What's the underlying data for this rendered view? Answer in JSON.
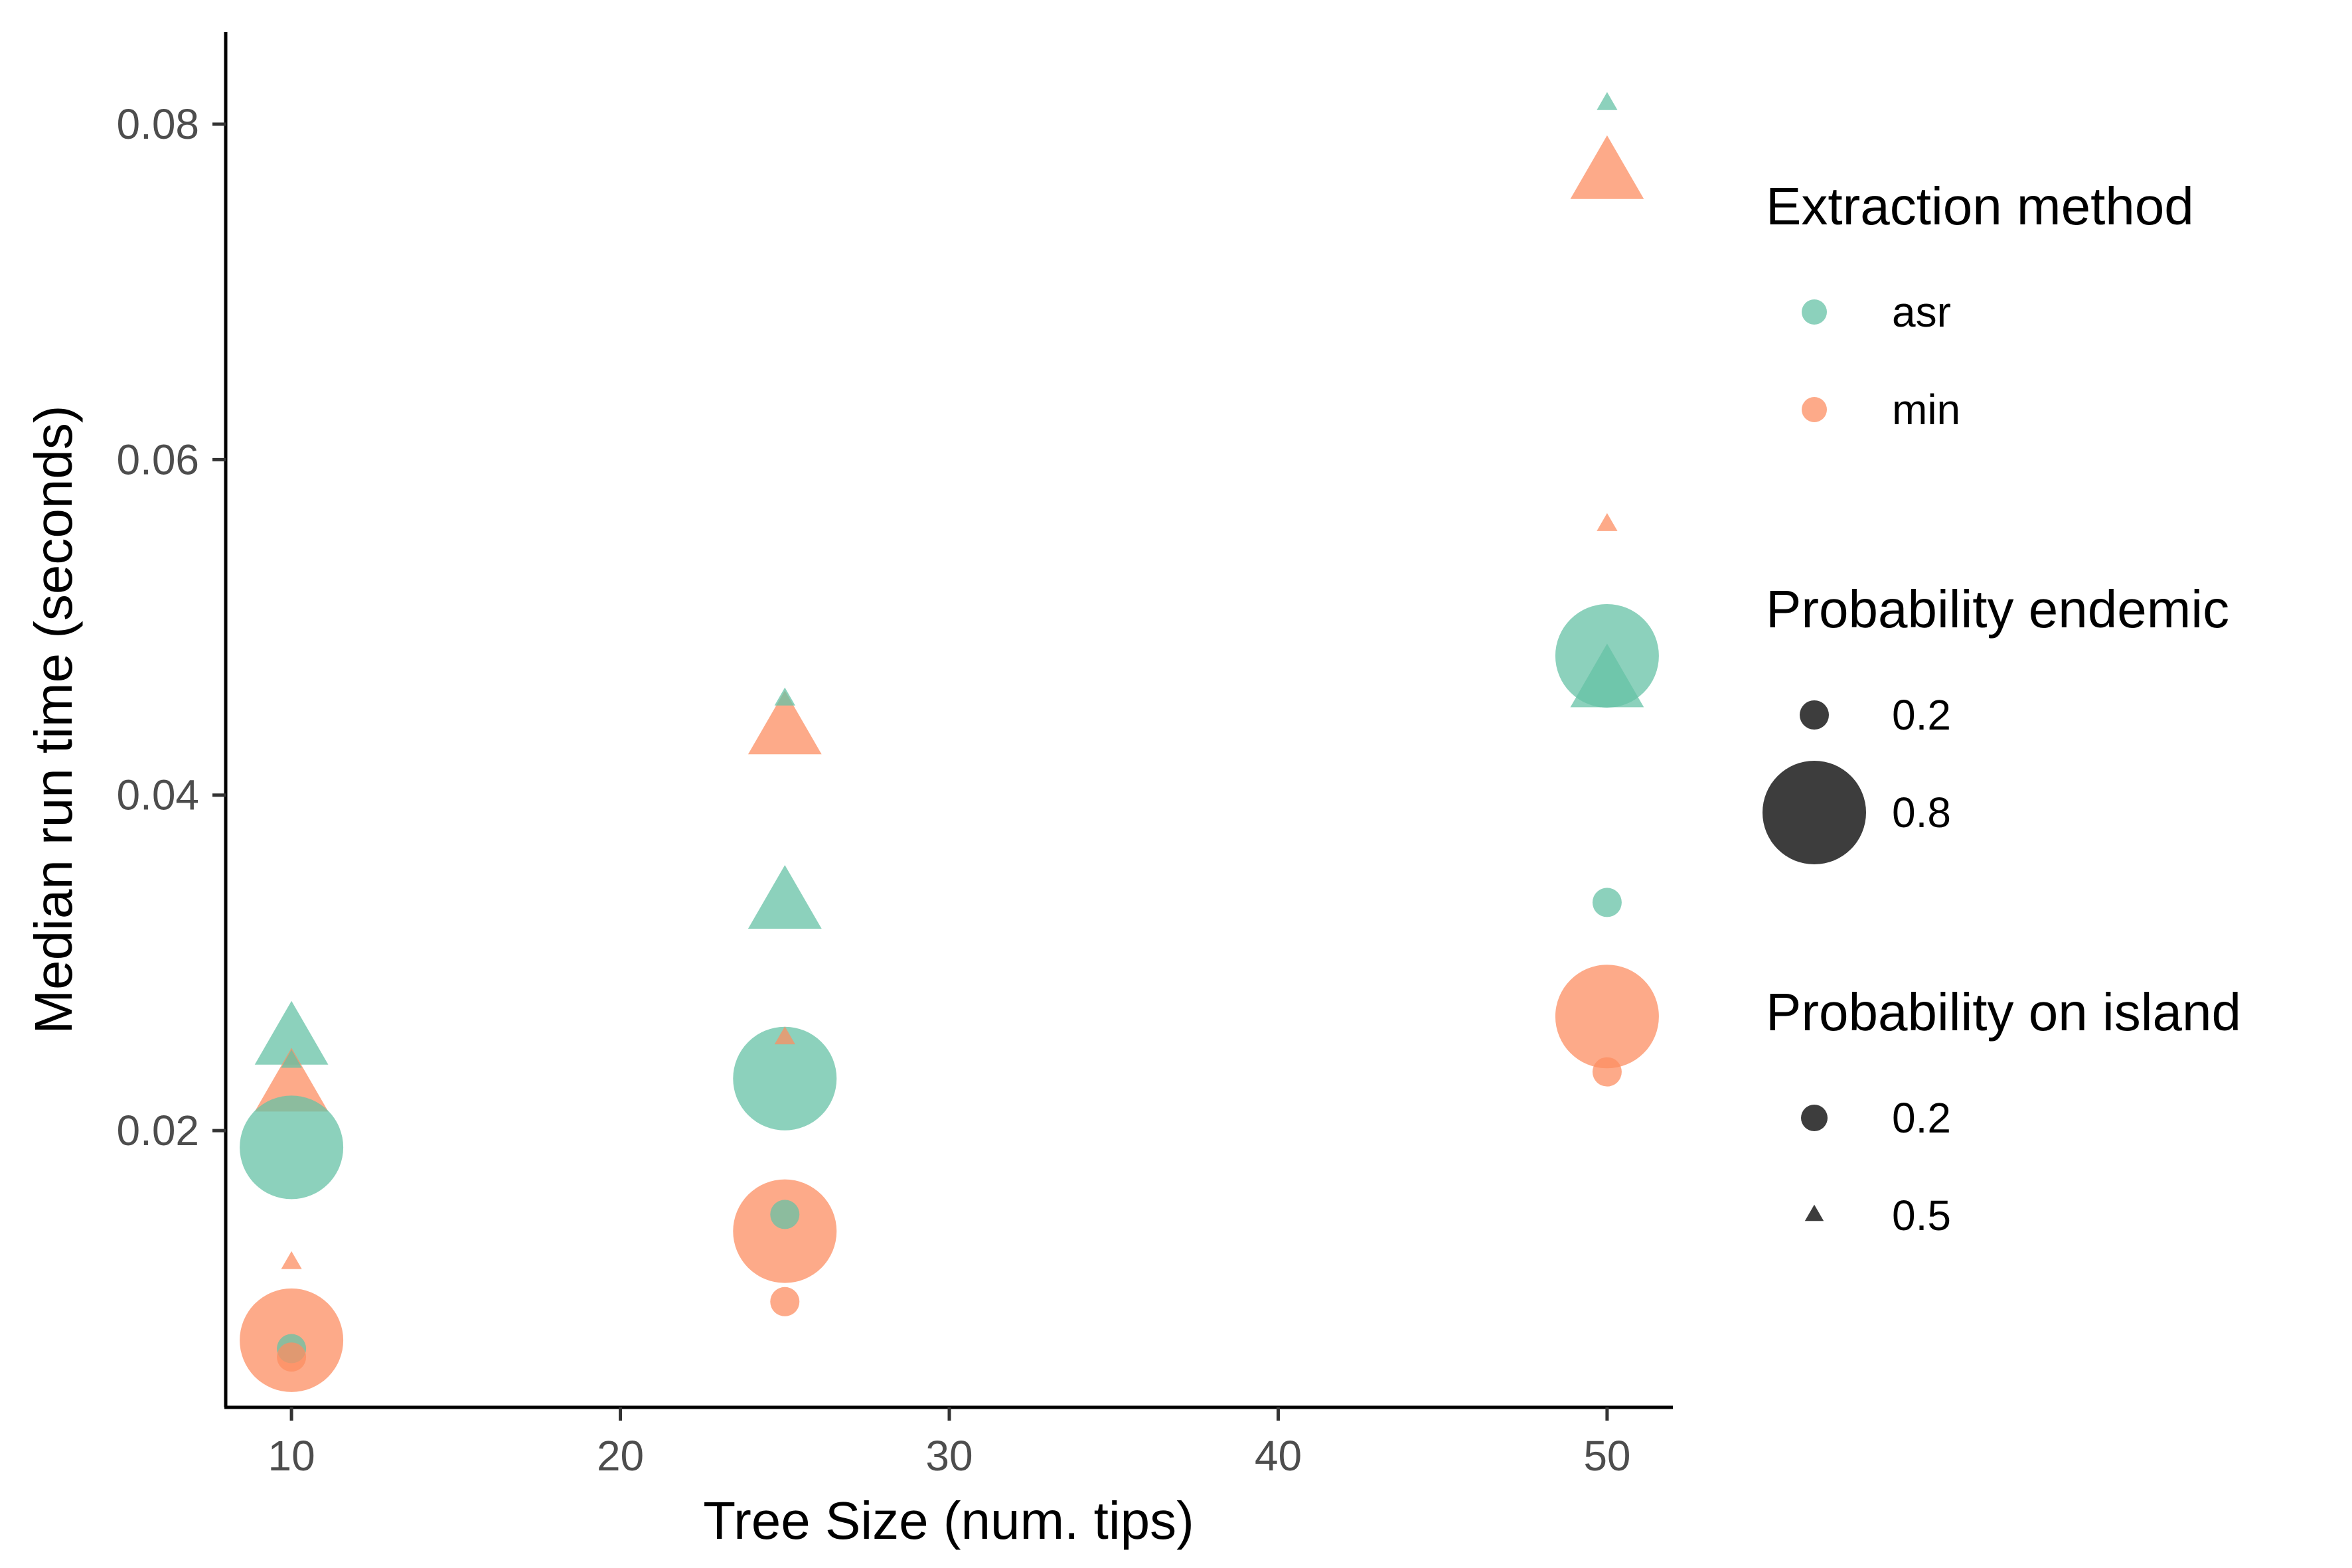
{
  "chart_data": {
    "type": "scatter",
    "title": "",
    "xlabel": "Tree Size (num. tips)",
    "ylabel": "Median run time (seconds)",
    "xlim": [
      8,
      52
    ],
    "ylim": [
      0.0035,
      0.0855
    ],
    "xticks": [
      10,
      20,
      30,
      40,
      50
    ],
    "xtick_labels": [
      "10",
      "20",
      "30",
      "40",
      "50"
    ],
    "yticks": [
      0.02,
      0.04,
      0.06,
      0.08
    ],
    "ytick_labels": [
      "0.02",
      "0.04",
      "0.06",
      "0.08"
    ],
    "grid": false,
    "legend_position": "right",
    "colors": {
      "asr": "#66c2a5",
      "min": "#fc8d62",
      "legend_dark": "#333333"
    },
    "point_opacity": 0.75,
    "legends": [
      {
        "title": "Extraction method",
        "items": [
          {
            "label": "asr",
            "method": "asr"
          },
          {
            "label": "min",
            "method": "min"
          }
        ]
      },
      {
        "title": "Probability endemic",
        "items": [
          {
            "label": "0.2",
            "endemic": 0.2
          },
          {
            "label": "0.8",
            "endemic": 0.8
          }
        ]
      },
      {
        "title": "Probability on island",
        "items": [
          {
            "label": "0.2",
            "island": 0.2
          },
          {
            "label": "0.5",
            "island": 0.5
          }
        ]
      }
    ],
    "points": [
      {
        "x": 10,
        "y": 0.0252,
        "method": "asr",
        "endemic": 0.8,
        "island": 0.5
      },
      {
        "x": 10,
        "y": 0.0224,
        "method": "min",
        "endemic": 0.8,
        "island": 0.5
      },
      {
        "x": 10,
        "y": 0.019,
        "method": "asr",
        "endemic": 0.8,
        "island": 0.2
      },
      {
        "x": 10,
        "y": 0.0241,
        "method": "asr",
        "endemic": 0.2,
        "island": 0.5
      },
      {
        "x": 10,
        "y": 0.0121,
        "method": "min",
        "endemic": 0.2,
        "island": 0.5
      },
      {
        "x": 10,
        "y": 0.0075,
        "method": "min",
        "endemic": 0.8,
        "island": 0.2
      },
      {
        "x": 10,
        "y": 0.007,
        "method": "asr",
        "endemic": 0.2,
        "island": 0.2
      },
      {
        "x": 10,
        "y": 0.0065,
        "method": "min",
        "endemic": 0.2,
        "island": 0.2
      },
      {
        "x": 25,
        "y": 0.0437,
        "method": "min",
        "endemic": 0.8,
        "island": 0.5
      },
      {
        "x": 25,
        "y": 0.0457,
        "method": "asr",
        "endemic": 0.2,
        "island": 0.5
      },
      {
        "x": 25,
        "y": 0.0333,
        "method": "asr",
        "endemic": 0.8,
        "island": 0.5
      },
      {
        "x": 25,
        "y": 0.0255,
        "method": "min",
        "endemic": 0.2,
        "island": 0.5
      },
      {
        "x": 25,
        "y": 0.0231,
        "method": "asr",
        "endemic": 0.8,
        "island": 0.2
      },
      {
        "x": 25,
        "y": 0.014,
        "method": "min",
        "endemic": 0.8,
        "island": 0.2
      },
      {
        "x": 25,
        "y": 0.015,
        "method": "asr",
        "endemic": 0.2,
        "island": 0.2
      },
      {
        "x": 25,
        "y": 0.0098,
        "method": "min",
        "endemic": 0.2,
        "island": 0.2
      },
      {
        "x": 50,
        "y": 0.0812,
        "method": "asr",
        "endemic": 0.2,
        "island": 0.5
      },
      {
        "x": 50,
        "y": 0.0768,
        "method": "min",
        "endemic": 0.8,
        "island": 0.5
      },
      {
        "x": 50,
        "y": 0.0561,
        "method": "min",
        "endemic": 0.2,
        "island": 0.5
      },
      {
        "x": 50,
        "y": 0.0483,
        "method": "asr",
        "endemic": 0.8,
        "island": 0.2
      },
      {
        "x": 50,
        "y": 0.0465,
        "method": "asr",
        "endemic": 0.8,
        "island": 0.5
      },
      {
        "x": 50,
        "y": 0.0336,
        "method": "asr",
        "endemic": 0.2,
        "island": 0.2
      },
      {
        "x": 50,
        "y": 0.0268,
        "method": "min",
        "endemic": 0.8,
        "island": 0.2
      },
      {
        "x": 50,
        "y": 0.0235,
        "method": "min",
        "endemic": 0.2,
        "island": 0.2
      }
    ]
  }
}
